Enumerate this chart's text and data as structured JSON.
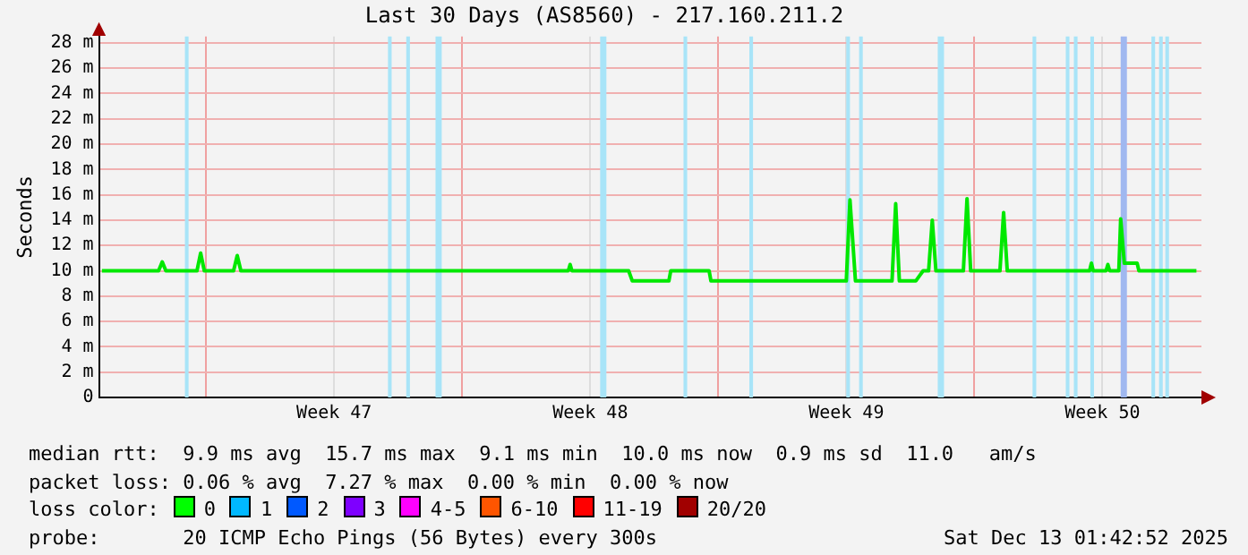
{
  "chart_data": {
    "type": "line",
    "title": "Last 30 Days (AS8560) - 217.160.211.2",
    "ylabel": "Seconds",
    "x": [
      "2025-11-13T03:36",
      "2025-11-14T16:48",
      "2025-11-14T19:12",
      "2025-11-14T21:36",
      "2025-11-15T18:00",
      "2025-11-15T20:24",
      "2025-11-15T22:48",
      "2025-11-16T18:00",
      "2025-11-16T20:24",
      "2025-11-16T22:48",
      "2025-11-25T21:36",
      "2025-11-25T22:48",
      "2025-11-26T00:00",
      "2025-11-27T13:12",
      "2025-11-27T15:36",
      "2025-11-28T15:36",
      "2025-11-28T16:48",
      "2025-11-29T18:00",
      "2025-11-29T19:12",
      "2025-12-03T12:00",
      "2025-12-03T14:24",
      "2025-12-03T18:00",
      "2025-12-04T18:00",
      "2025-12-04T20:24",
      "2025-12-04T22:48",
      "2025-12-05T09:36",
      "2025-12-05T12:00",
      "2025-12-05T14:24",
      "2025-12-05T18:00",
      "2025-12-05T20:24",
      "2025-12-05T22:48",
      "2025-12-06T16:48",
      "2025-12-06T19:12",
      "2025-12-06T21:36",
      "2025-12-07T16:48",
      "2025-12-07T19:12",
      "2025-12-07T21:36",
      "2025-12-10T03:36",
      "2025-12-10T04:48",
      "2025-12-10T06:00",
      "2025-12-10T14:24",
      "2025-12-10T15:36",
      "2025-12-10T16:48",
      "2025-12-10T22:48",
      "2025-12-11T00:00",
      "2025-12-11T02:24",
      "2025-12-11T10:48",
      "2025-12-11T12:00",
      "2025-12-13T01:42"
    ],
    "series": [
      {
        "color": "#00e800",
        "values": [
          10.0,
          10.0,
          10.7,
          10.0,
          10.0,
          11.4,
          10.0,
          10.0,
          11.2,
          10.0,
          10.0,
          10.5,
          10.0,
          10.0,
          9.2,
          9.2,
          10.0,
          10.0,
          9.2,
          9.2,
          15.6,
          9.2,
          9.2,
          15.3,
          9.2,
          9.2,
          9.6,
          10.0,
          10.0,
          14.0,
          10.0,
          10.0,
          15.7,
          10.0,
          10.0,
          14.6,
          10.0,
          10.0,
          10.6,
          10.0,
          10.0,
          10.5,
          10.0,
          10.0,
          14.1,
          10.6,
          10.6,
          10.0,
          10.0
        ]
      }
    ],
    "xlim": [
      "2025-11-13T01:42",
      "2025-12-13T05:00"
    ],
    "xticks": [
      {
        "value": "2025-11-16",
        "label": null
      },
      {
        "value": "2025-11-19T12:00",
        "label": "Week 47"
      },
      {
        "value": "2025-11-23",
        "label": null
      },
      {
        "value": "2025-11-26T12:00",
        "label": "Week 48"
      },
      {
        "value": "2025-11-30",
        "label": null
      },
      {
        "value": "2025-12-03T12:00",
        "label": "Week 49"
      },
      {
        "value": "2025-12-07",
        "label": null
      },
      {
        "value": "2025-12-10T12:00",
        "label": "Week 50"
      }
    ],
    "ylim": [
      0,
      28.5
    ],
    "yticks": [
      0,
      {
        "value": 2,
        "label": "2 m"
      },
      {
        "value": 4,
        "label": "4 m"
      },
      {
        "value": 6,
        "label": "6 m"
      },
      {
        "value": 8,
        "label": "8 m"
      },
      {
        "value": 10,
        "label": "10 m"
      },
      {
        "value": 12,
        "label": "12 m"
      },
      {
        "value": 14,
        "label": "14 m"
      },
      {
        "value": 16,
        "label": "16 m"
      },
      {
        "value": 18,
        "label": "18 m"
      },
      {
        "value": 20,
        "label": "20 m"
      },
      {
        "value": 22,
        "label": "22 m"
      },
      {
        "value": 24,
        "label": "24 m"
      },
      {
        "value": 26,
        "label": "26 m"
      },
      {
        "value": 28,
        "label": "28 m"
      }
    ],
    "grid": true,
    "legend": false,
    "marker": "none",
    "line_style": "solid",
    "bands": [
      {
        "axis": "x",
        "from": "2025-11-15T10:05",
        "to": "2025-11-15T12:29",
        "color": "#a8e4f8"
      },
      {
        "axis": "x",
        "from": "2025-11-20T23:18",
        "to": "2025-11-21T01:42",
        "color": "#a8e4f8"
      },
      {
        "axis": "x",
        "from": "2025-11-21T11:18",
        "to": "2025-11-21T13:42",
        "color": "#a8e4f8"
      },
      {
        "axis": "x",
        "from": "2025-11-22T06:30",
        "to": "2025-11-22T10:34",
        "color": "#a8e4f8"
      },
      {
        "axis": "x",
        "from": "2025-11-26T18:30",
        "to": "2025-11-26T22:36",
        "color": "#a8e4f8"
      },
      {
        "axis": "x",
        "from": "2025-11-29T01:12",
        "to": "2025-11-29T03:36",
        "color": "#a8e4f8"
      },
      {
        "axis": "x",
        "from": "2025-11-30T20:24",
        "to": "2025-11-30T22:48",
        "color": "#a8e4f8"
      },
      {
        "axis": "x",
        "from": "2025-12-03T12:00",
        "to": "2025-12-03T14:24",
        "color": "#a8e4f8"
      },
      {
        "axis": "x",
        "from": "2025-12-03T20:24",
        "to": "2025-12-03T22:48",
        "color": "#a8e4f8"
      },
      {
        "axis": "x",
        "from": "2025-12-06T00:00",
        "to": "2025-12-06T04:06",
        "color": "#a8e4f8"
      },
      {
        "axis": "x",
        "from": "2025-12-08T14:12",
        "to": "2025-12-08T16:36",
        "color": "#a8e4f8"
      },
      {
        "axis": "x",
        "from": "2025-12-09T12:00",
        "to": "2025-12-09T14:24",
        "color": "#a8e4f8"
      },
      {
        "axis": "x",
        "from": "2025-12-09T17:18",
        "to": "2025-12-09T19:42",
        "color": "#a8e4f8"
      },
      {
        "axis": "x",
        "from": "2025-12-10T04:06",
        "to": "2025-12-10T06:30",
        "color": "#a8e4f8"
      },
      {
        "axis": "x",
        "from": "2025-12-11T00:00",
        "to": "2025-12-11T04:06",
        "color": "#a0b8f0"
      },
      {
        "axis": "x",
        "from": "2025-12-11T20:12",
        "to": "2025-12-11T22:36",
        "color": "#a8e4f8"
      },
      {
        "axis": "x",
        "from": "2025-12-12T01:12",
        "to": "2025-12-12T03:36",
        "color": "#a8e4f8"
      },
      {
        "axis": "x",
        "from": "2025-12-12T05:18",
        "to": "2025-12-12T07:42",
        "color": "#a8e4f8"
      }
    ],
    "annotations": [
      "median rtt:  9.9 ms avg  15.7 ms max  9.1 ms min  10.0 ms now  0.9 ms sd  11.0   am/s",
      "packet loss: 0.06 % avg  7.27 % max  0.00 % min  0.00 % now",
      "loss color:",
      "0",
      "1",
      "2",
      "3",
      "4-5",
      "6-10",
      "11-19",
      "20/20",
      "probe:       20 ICMP Echo Pings (56 Bytes) every 300s",
      "Sat Dec 13 01:42:52 2025"
    ]
  }
}
